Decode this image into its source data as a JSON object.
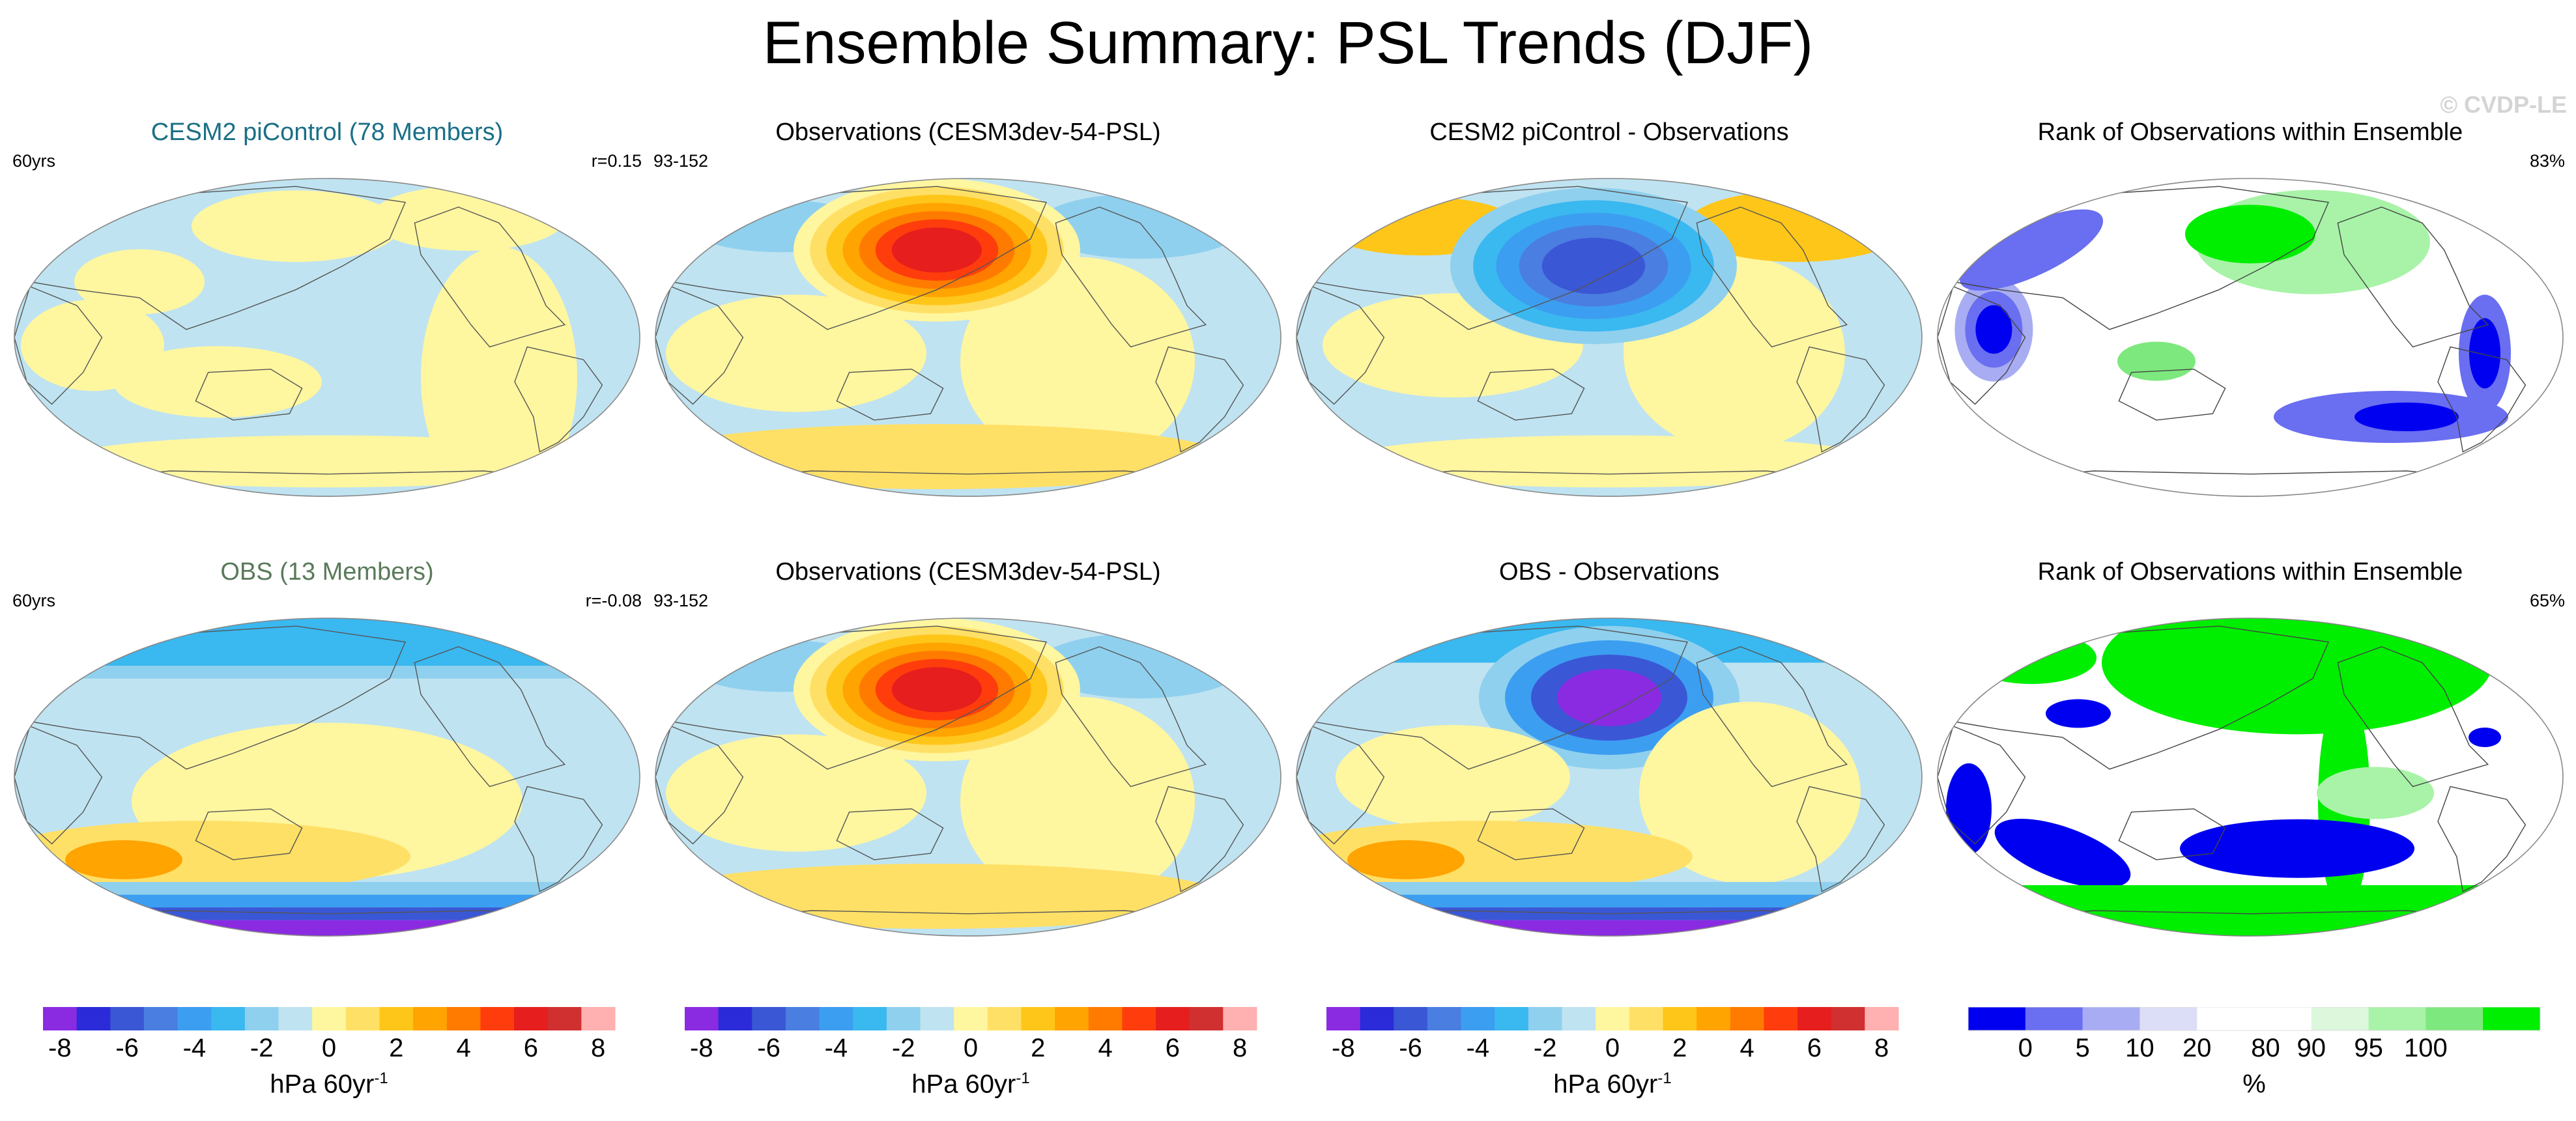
{
  "title": "Ensemble Summary: PSL Trends (DJF)",
  "watermark": "© CVDP-LE",
  "colors": {
    "psl_scale": [
      "#8a2be2",
      "#2b2bd9",
      "#3a57d6",
      "#4a7ee0",
      "#3c9ef0",
      "#3ab8f0",
      "#8fd0ee",
      "#bfe3f1",
      "#fff6a0",
      "#ffe066",
      "#ffc61a",
      "#ffa400",
      "#ff7b00",
      "#ff3d0c",
      "#e61e1e",
      "#d0302f",
      "#ffb0b0"
    ],
    "rank_scale": [
      "#0000f0",
      "#6a6ef0",
      "#a8acf2",
      "#dcdef8",
      "#ffffff",
      "#ffffff",
      "#ddf7dd",
      "#a8f3a8",
      "#7de87d",
      "#00ee00"
    ],
    "title_model": "#1a6f86",
    "title_obs": "#5a7a5a",
    "land": "#ffffff"
  },
  "panels": [
    {
      "title": "CESM2 piControl (78 Members)",
      "left": "60yrs",
      "right": "r=0.15",
      "pattern": "ens_mean_control",
      "title_color": "title_model"
    },
    {
      "title": "Observations (CESM3dev-54-PSL)",
      "left": "93-152",
      "right": "",
      "pattern": "obs",
      "title_color": "default"
    },
    {
      "title": "CESM2 piControl - Observations",
      "left": "",
      "right": "",
      "pattern": "diff_control",
      "title_color": "default"
    },
    {
      "title": "Rank of Observations within Ensemble",
      "left": "",
      "right": "83%",
      "pattern": "rank_control",
      "title_color": "default"
    },
    {
      "title": "OBS (13 Members)",
      "left": "60yrs",
      "right": "r=-0.08",
      "pattern": "ens_mean_obs",
      "title_color": "title_obs"
    },
    {
      "title": "Observations (CESM3dev-54-PSL)",
      "left": "93-152",
      "right": "",
      "pattern": "obs",
      "title_color": "default"
    },
    {
      "title": "OBS - Observations",
      "left": "",
      "right": "",
      "pattern": "diff_obs",
      "title_color": "default"
    },
    {
      "title": "Rank of Observations within Ensemble",
      "left": "",
      "right": "65%",
      "pattern": "rank_obs",
      "title_color": "default"
    }
  ],
  "chart_data": [
    {
      "type": "heatmap",
      "title": "CESM2 piControl (78 Members)",
      "annotation_left": "60yrs",
      "annotation_right": "r=0.15",
      "projection": "global",
      "description": "ensemble mean PSL trend, weak, mostly within -1 to +1 hPa",
      "value_range": [
        -1,
        1
      ]
    },
    {
      "type": "heatmap",
      "title": "Observations (CESM3dev-54-PSL)",
      "annotation_left": "93-152",
      "projection": "global",
      "features": [
        {
          "name": "North Pacific high",
          "value": 7.5
        },
        {
          "name": "Arctic/North Atlantic low",
          "value": -3
        }
      ],
      "value_range": [
        -3,
        7.5
      ]
    },
    {
      "type": "heatmap",
      "title": "CESM2 piControl - Observations",
      "projection": "global",
      "features": [
        {
          "name": "North Pacific low",
          "value": -7
        },
        {
          "name": "Arctic/North Atlantic high",
          "value": 3
        }
      ],
      "value_range": [
        -7,
        3
      ]
    },
    {
      "type": "heatmap",
      "title": "Rank of Observations within Ensemble",
      "annotation_right": "83%",
      "projection": "global",
      "units": "%",
      "description": "mostly 20-80%; low ranks over Indian Ocean and South Atlantic, high ranks over North Pacific"
    },
    {
      "type": "heatmap",
      "title": "OBS (13 Members)",
      "annotation_left": "60yrs",
      "annotation_right": "r=-0.08",
      "projection": "global",
      "features": [
        {
          "name": "Antarctic low",
          "value": -9
        },
        {
          "name": "Arctic low",
          "value": -4
        },
        {
          "name": "Southern midlatitude high",
          "value": 3
        }
      ],
      "value_range": [
        -9,
        3
      ]
    },
    {
      "type": "heatmap",
      "title": "Observations (CESM3dev-54-PSL)",
      "annotation_left": "93-152",
      "projection": "global",
      "features": [
        {
          "name": "North Pacific high",
          "value": 7.5
        },
        {
          "name": "Arctic/North Atlantic low",
          "value": -3
        }
      ],
      "value_range": [
        -3,
        7.5
      ]
    },
    {
      "type": "heatmap",
      "title": "OBS - Observations",
      "projection": "global",
      "features": [
        {
          "name": "Antarctic low",
          "value": -9
        },
        {
          "name": "North Pacific low",
          "value": -7
        },
        {
          "name": "Southern midlatitude high",
          "value": 3
        }
      ],
      "value_range": [
        -9,
        3
      ]
    },
    {
      "type": "heatmap",
      "title": "Rank of Observations within Ensemble",
      "annotation_right": "65%",
      "projection": "global",
      "units": "%",
      "description": "high ranks (>=95%) over Northern Hemisphere and Antarctica; low ranks (<=5%) over Southern Ocean"
    }
  ],
  "colorbars": [
    {
      "type": "psl",
      "levels": [
        -8,
        -7,
        -6,
        -5,
        -4,
        -3,
        -2,
        -1,
        0,
        1,
        2,
        3,
        4,
        5,
        6,
        7,
        8
      ],
      "tick_labels": [
        "-8",
        "-6",
        "-4",
        "-2",
        "0",
        "2",
        "4",
        "6",
        "8"
      ],
      "label": "hPa 60yr",
      "label_sup": "-1"
    },
    {
      "type": "psl",
      "levels": [
        -8,
        -7,
        -6,
        -5,
        -4,
        -3,
        -2,
        -1,
        0,
        1,
        2,
        3,
        4,
        5,
        6,
        7,
        8
      ],
      "tick_labels": [
        "-8",
        "-6",
        "-4",
        "-2",
        "0",
        "2",
        "4",
        "6",
        "8"
      ],
      "label": "hPa 60yr",
      "label_sup": "-1"
    },
    {
      "type": "psl",
      "levels": [
        -8,
        -7,
        -6,
        -5,
        -4,
        -3,
        -2,
        -1,
        0,
        1,
        2,
        3,
        4,
        5,
        6,
        7,
        8
      ],
      "tick_labels": [
        "-8",
        "-6",
        "-4",
        "-2",
        "0",
        "2",
        "4",
        "6",
        "8"
      ],
      "label": "hPa 60yr",
      "label_sup": "-1"
    },
    {
      "type": "rank",
      "levels": [
        0,
        5,
        10,
        20,
        80,
        90,
        95,
        100
      ],
      "tick_labels": [
        "0",
        "5",
        "10",
        "20",
        "80",
        "90",
        "95",
        "100"
      ],
      "label": "%",
      "label_sup": ""
    }
  ]
}
